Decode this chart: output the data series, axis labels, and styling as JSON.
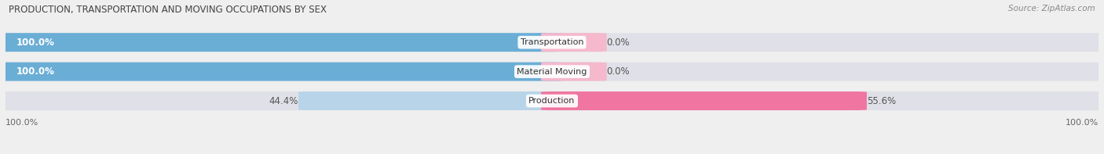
{
  "title": "PRODUCTION, TRANSPORTATION AND MOVING OCCUPATIONS BY SEX",
  "source": "Source: ZipAtlas.com",
  "categories": [
    "Transportation",
    "Material Moving",
    "Production"
  ],
  "male_pct": [
    100.0,
    100.0,
    44.4
  ],
  "female_pct": [
    0.0,
    0.0,
    55.6
  ],
  "male_color_full": "#6aaed6",
  "male_color_light": "#b8d4e8",
  "female_color_full": "#f075a0",
  "female_color_light": "#f5b8cc",
  "bg_color": "#efefef",
  "bar_bg_color": "#e0e0e8",
  "axis_label_left": "100.0%",
  "axis_label_right": "100.0%",
  "figsize": [
    14.06,
    1.97
  ],
  "dpi": 100
}
